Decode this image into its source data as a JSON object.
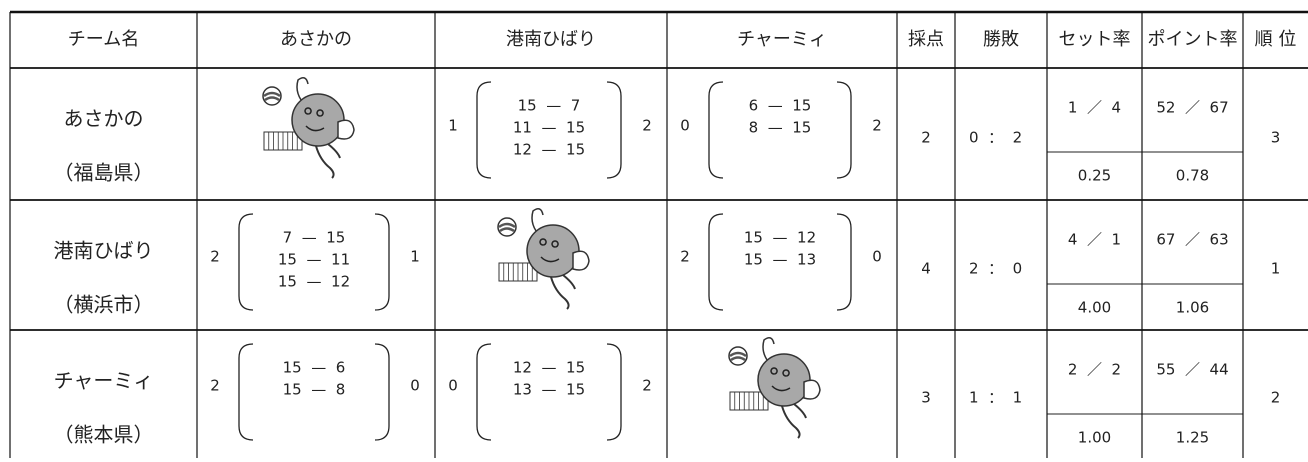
{
  "table": {
    "header": [
      "チーム名",
      "あさかの",
      "港南ひばり",
      "チャーミィ",
      "採点",
      "勝敗",
      "セット率",
      "ポイント率",
      "順 位"
    ],
    "rows": [
      {
        "team": "あさかの",
        "area": "（福島県）",
        "matches": [
          null,
          {
            "left": 1,
            "sets": [
              "15  —  7",
              "11  —  15",
              "12  —  15"
            ],
            "right": 2
          },
          {
            "left": 0,
            "sets": [
              "6  —  15",
              "8  —  15"
            ],
            "right": 2
          }
        ],
        "points": 2,
        "record": "0  ：  2",
        "set_ratio": "1  ／  4",
        "set_rate": "0.25",
        "point_ratio": "52  ／  67",
        "point_rate": "0.78",
        "rank": 3
      },
      {
        "team": "港南ひばり",
        "area": "（横浜市）",
        "matches": [
          {
            "left": 2,
            "sets": [
              "7  —  15",
              "15  —  11",
              "15  —  12"
            ],
            "right": 1
          },
          null,
          {
            "left": 2,
            "sets": [
              "15  —  12",
              "15  —  13"
            ],
            "right": 0
          }
        ],
        "points": 4,
        "record": "2  ：  0",
        "set_ratio": "4  ／  1",
        "set_rate": "4.00",
        "point_ratio": "67  ／  63",
        "point_rate": "1.06",
        "rank": 1
      },
      {
        "team": "チャーミィ",
        "area": "（熊本県）",
        "matches": [
          {
            "left": 2,
            "sets": [
              "15  —  6",
              "15  —  8"
            ],
            "right": 0
          },
          {
            "left": 0,
            "sets": [
              "12  —  15",
              "13  —  15"
            ],
            "right": 2
          },
          null
        ],
        "points": 3,
        "record": "1  ：  1",
        "set_ratio": "2  ／  2",
        "set_rate": "1.00",
        "point_ratio": "55  ／  44",
        "point_rate": "1.25",
        "rank": 2
      }
    ]
  }
}
